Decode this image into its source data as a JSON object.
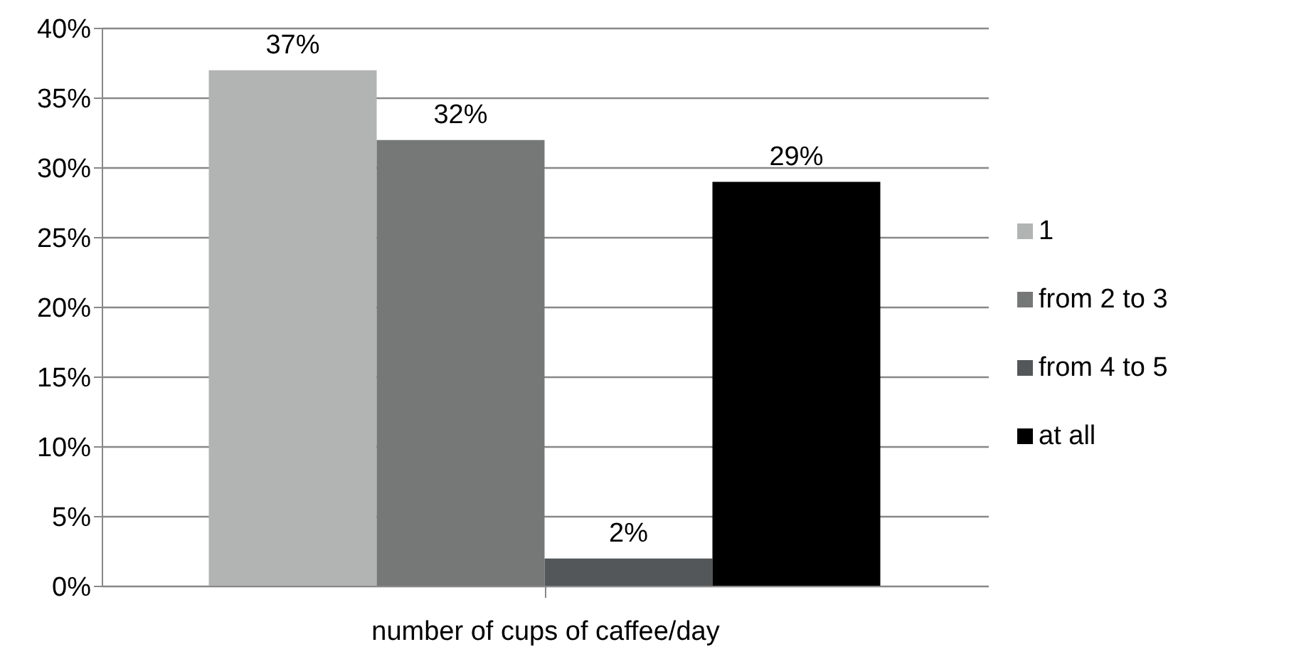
{
  "chart_data": {
    "type": "bar",
    "categories": [
      "number of cups of caffee/day"
    ],
    "series": [
      {
        "name": "1",
        "color": "#b2b3b3",
        "values": [
          37
        ],
        "value_labels": [
          "37%"
        ]
      },
      {
        "name": "from 2 to 3",
        "color": "#767878",
        "values": [
          32
        ],
        "value_labels": [
          "32%"
        ]
      },
      {
        "name": "from 4 to 5",
        "color": "#53575a",
        "values": [
          2
        ],
        "value_labels": [
          "2%"
        ]
      },
      {
        "name": "at all",
        "color": "#000000",
        "values": [
          29
        ],
        "value_labels": [
          "29%"
        ]
      }
    ],
    "ylim": [
      0,
      40
    ],
    "yticks": [
      {
        "value": 0,
        "label": "0%"
      },
      {
        "value": 5,
        "label": "5%"
      },
      {
        "value": 10,
        "label": "10%"
      },
      {
        "value": 15,
        "label": "15%"
      },
      {
        "value": 20,
        "label": "20%"
      },
      {
        "value": 25,
        "label": "25%"
      },
      {
        "value": 30,
        "label": "30%"
      },
      {
        "value": 35,
        "label": "35%"
      },
      {
        "value": 40,
        "label": "40%"
      }
    ],
    "grid": "y",
    "legend": "right"
  }
}
